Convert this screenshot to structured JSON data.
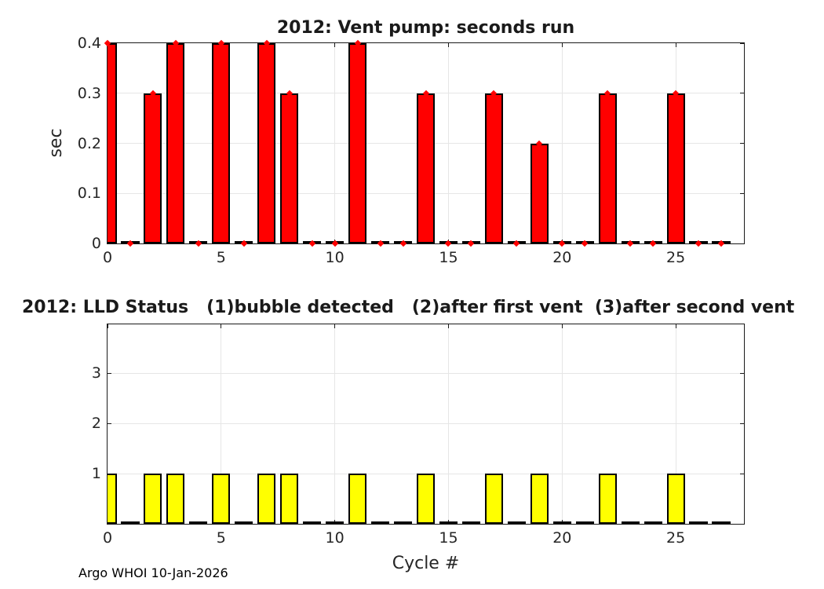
{
  "figure": {
    "footer": "Argo WHOI 10-Jan-2026"
  },
  "chart_data": [
    {
      "type": "bar",
      "title": "2012: Vent pump: seconds run",
      "xlabel": "",
      "ylabel": "sec",
      "x": [
        0,
        1,
        2,
        3,
        4,
        5,
        6,
        7,
        8,
        9,
        10,
        11,
        12,
        13,
        14,
        15,
        16,
        17,
        18,
        19,
        20,
        21,
        22,
        23,
        24,
        25,
        26,
        27
      ],
      "values": [
        0.4,
        0,
        0.3,
        0.4,
        0,
        0.4,
        0,
        0.4,
        0.3,
        0,
        0,
        0.4,
        0,
        0,
        0.3,
        0,
        0,
        0.3,
        0,
        0.2,
        0,
        0,
        0.3,
        0,
        0,
        0.3,
        0,
        0
      ],
      "xlim": [
        0,
        28
      ],
      "ylim": [
        0,
        0.4
      ],
      "xticks": [
        "0",
        "5",
        "10",
        "15",
        "20",
        "25"
      ],
      "yticks": [
        "0",
        "0.1",
        "0.2",
        "0.3",
        "0.4"
      ],
      "grid": true,
      "bar_width": 0.8,
      "bar_color": "#ff0000",
      "edge_color": "#000000",
      "markers": true,
      "marker_color": "#ff0000"
    },
    {
      "type": "bar",
      "title": "2012: LLD Status   (1)bubble detected   (2)after first vent  (3)after second vent",
      "xlabel": "Cycle #",
      "ylabel": "",
      "x": [
        0,
        1,
        2,
        3,
        4,
        5,
        6,
        7,
        8,
        9,
        10,
        11,
        12,
        13,
        14,
        15,
        16,
        17,
        18,
        19,
        20,
        21,
        22,
        23,
        24,
        25,
        26,
        27
      ],
      "values": [
        1,
        0,
        1,
        1,
        0,
        1,
        0,
        1,
        1,
        0,
        0,
        1,
        0,
        0,
        1,
        0,
        0,
        1,
        0,
        1,
        0,
        0,
        1,
        0,
        0,
        1,
        0,
        0
      ],
      "xlim": [
        0,
        28
      ],
      "ylim": [
        0,
        3.97
      ],
      "xticks": [
        "0",
        "5",
        "10",
        "15",
        "20",
        "25"
      ],
      "yticks": [
        "1",
        "2",
        "3"
      ],
      "grid": true,
      "bar_width": 0.8,
      "bar_color": "#ffff00",
      "edge_color": "#000000",
      "markers": false,
      "marker_color": "#ff0000"
    }
  ]
}
